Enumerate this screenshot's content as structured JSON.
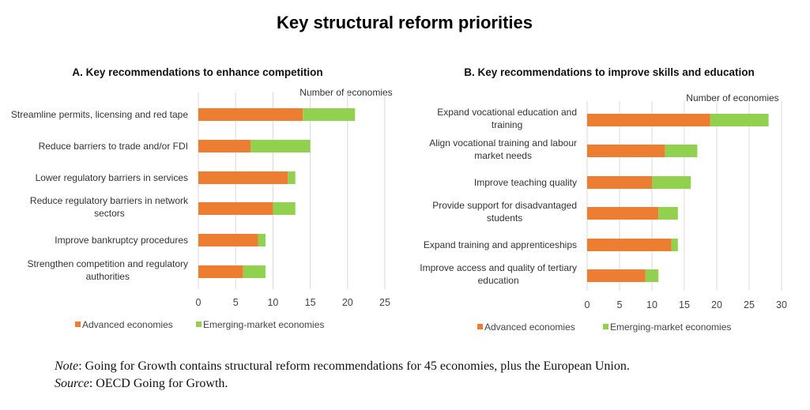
{
  "title": "Key structural reform priorities",
  "colors": {
    "advanced": "#ED7D31",
    "emerging": "#92D050",
    "grid": "#D9D9D9"
  },
  "chart_data": [
    {
      "type": "bar",
      "orientation": "horizontal",
      "stacked": true,
      "title": "A. Key recommendations to enhance competition",
      "xlabel": "Number of economies",
      "xlim": [
        0,
        25
      ],
      "xticks": [
        "0",
        "5",
        "10",
        "15",
        "20",
        "25"
      ],
      "grid": true,
      "legend": "bottom",
      "categories": [
        [
          "Streamline permits, licensing and red tape"
        ],
        [
          "Reduce barriers to trade and/or FDI"
        ],
        [
          "Lower regulatory barriers in services"
        ],
        [
          "Reduce regulatory barriers in network",
          "sectors"
        ],
        [
          "Improve bankruptcy procedures"
        ],
        [
          "Strengthen competition and regulatory",
          "authorities"
        ]
      ],
      "series": [
        {
          "name": "Advanced economies",
          "values": [
            14,
            7,
            12,
            10,
            8,
            6
          ]
        },
        {
          "name": "Emerging-market economies",
          "values": [
            7,
            8,
            1,
            3,
            1,
            3
          ]
        }
      ]
    },
    {
      "type": "bar",
      "orientation": "horizontal",
      "stacked": true,
      "title": "B. Key recommendations to improve skills and education",
      "xlabel": "Number of economies",
      "xlim": [
        0,
        30
      ],
      "xticks": [
        "0",
        "5",
        "10",
        "15",
        "20",
        "25",
        "30"
      ],
      "grid": true,
      "legend": "bottom",
      "categories": [
        [
          "Expand vocational education and",
          "training"
        ],
        [
          "Align vocational training and labour",
          "market needs"
        ],
        [
          "Improve teaching quality"
        ],
        [
          "Provide support for disadvantaged",
          "students"
        ],
        [
          "Expand training and apprenticeships"
        ],
        [
          "Improve access and quality of tertiary",
          "education"
        ]
      ],
      "series": [
        {
          "name": "Advanced economies",
          "values": [
            19,
            12,
            10,
            11,
            13,
            9
          ]
        },
        {
          "name": "Emerging-market economies",
          "values": [
            9,
            5,
            6,
            3,
            1,
            2
          ]
        }
      ]
    }
  ],
  "note": {
    "note_label": "Note",
    "note_text": ": Going for Growth contains structural reform recommendations for 45 economies, plus the European Union.",
    "source_label": "Source",
    "source_text": ": OECD Going for Growth."
  }
}
